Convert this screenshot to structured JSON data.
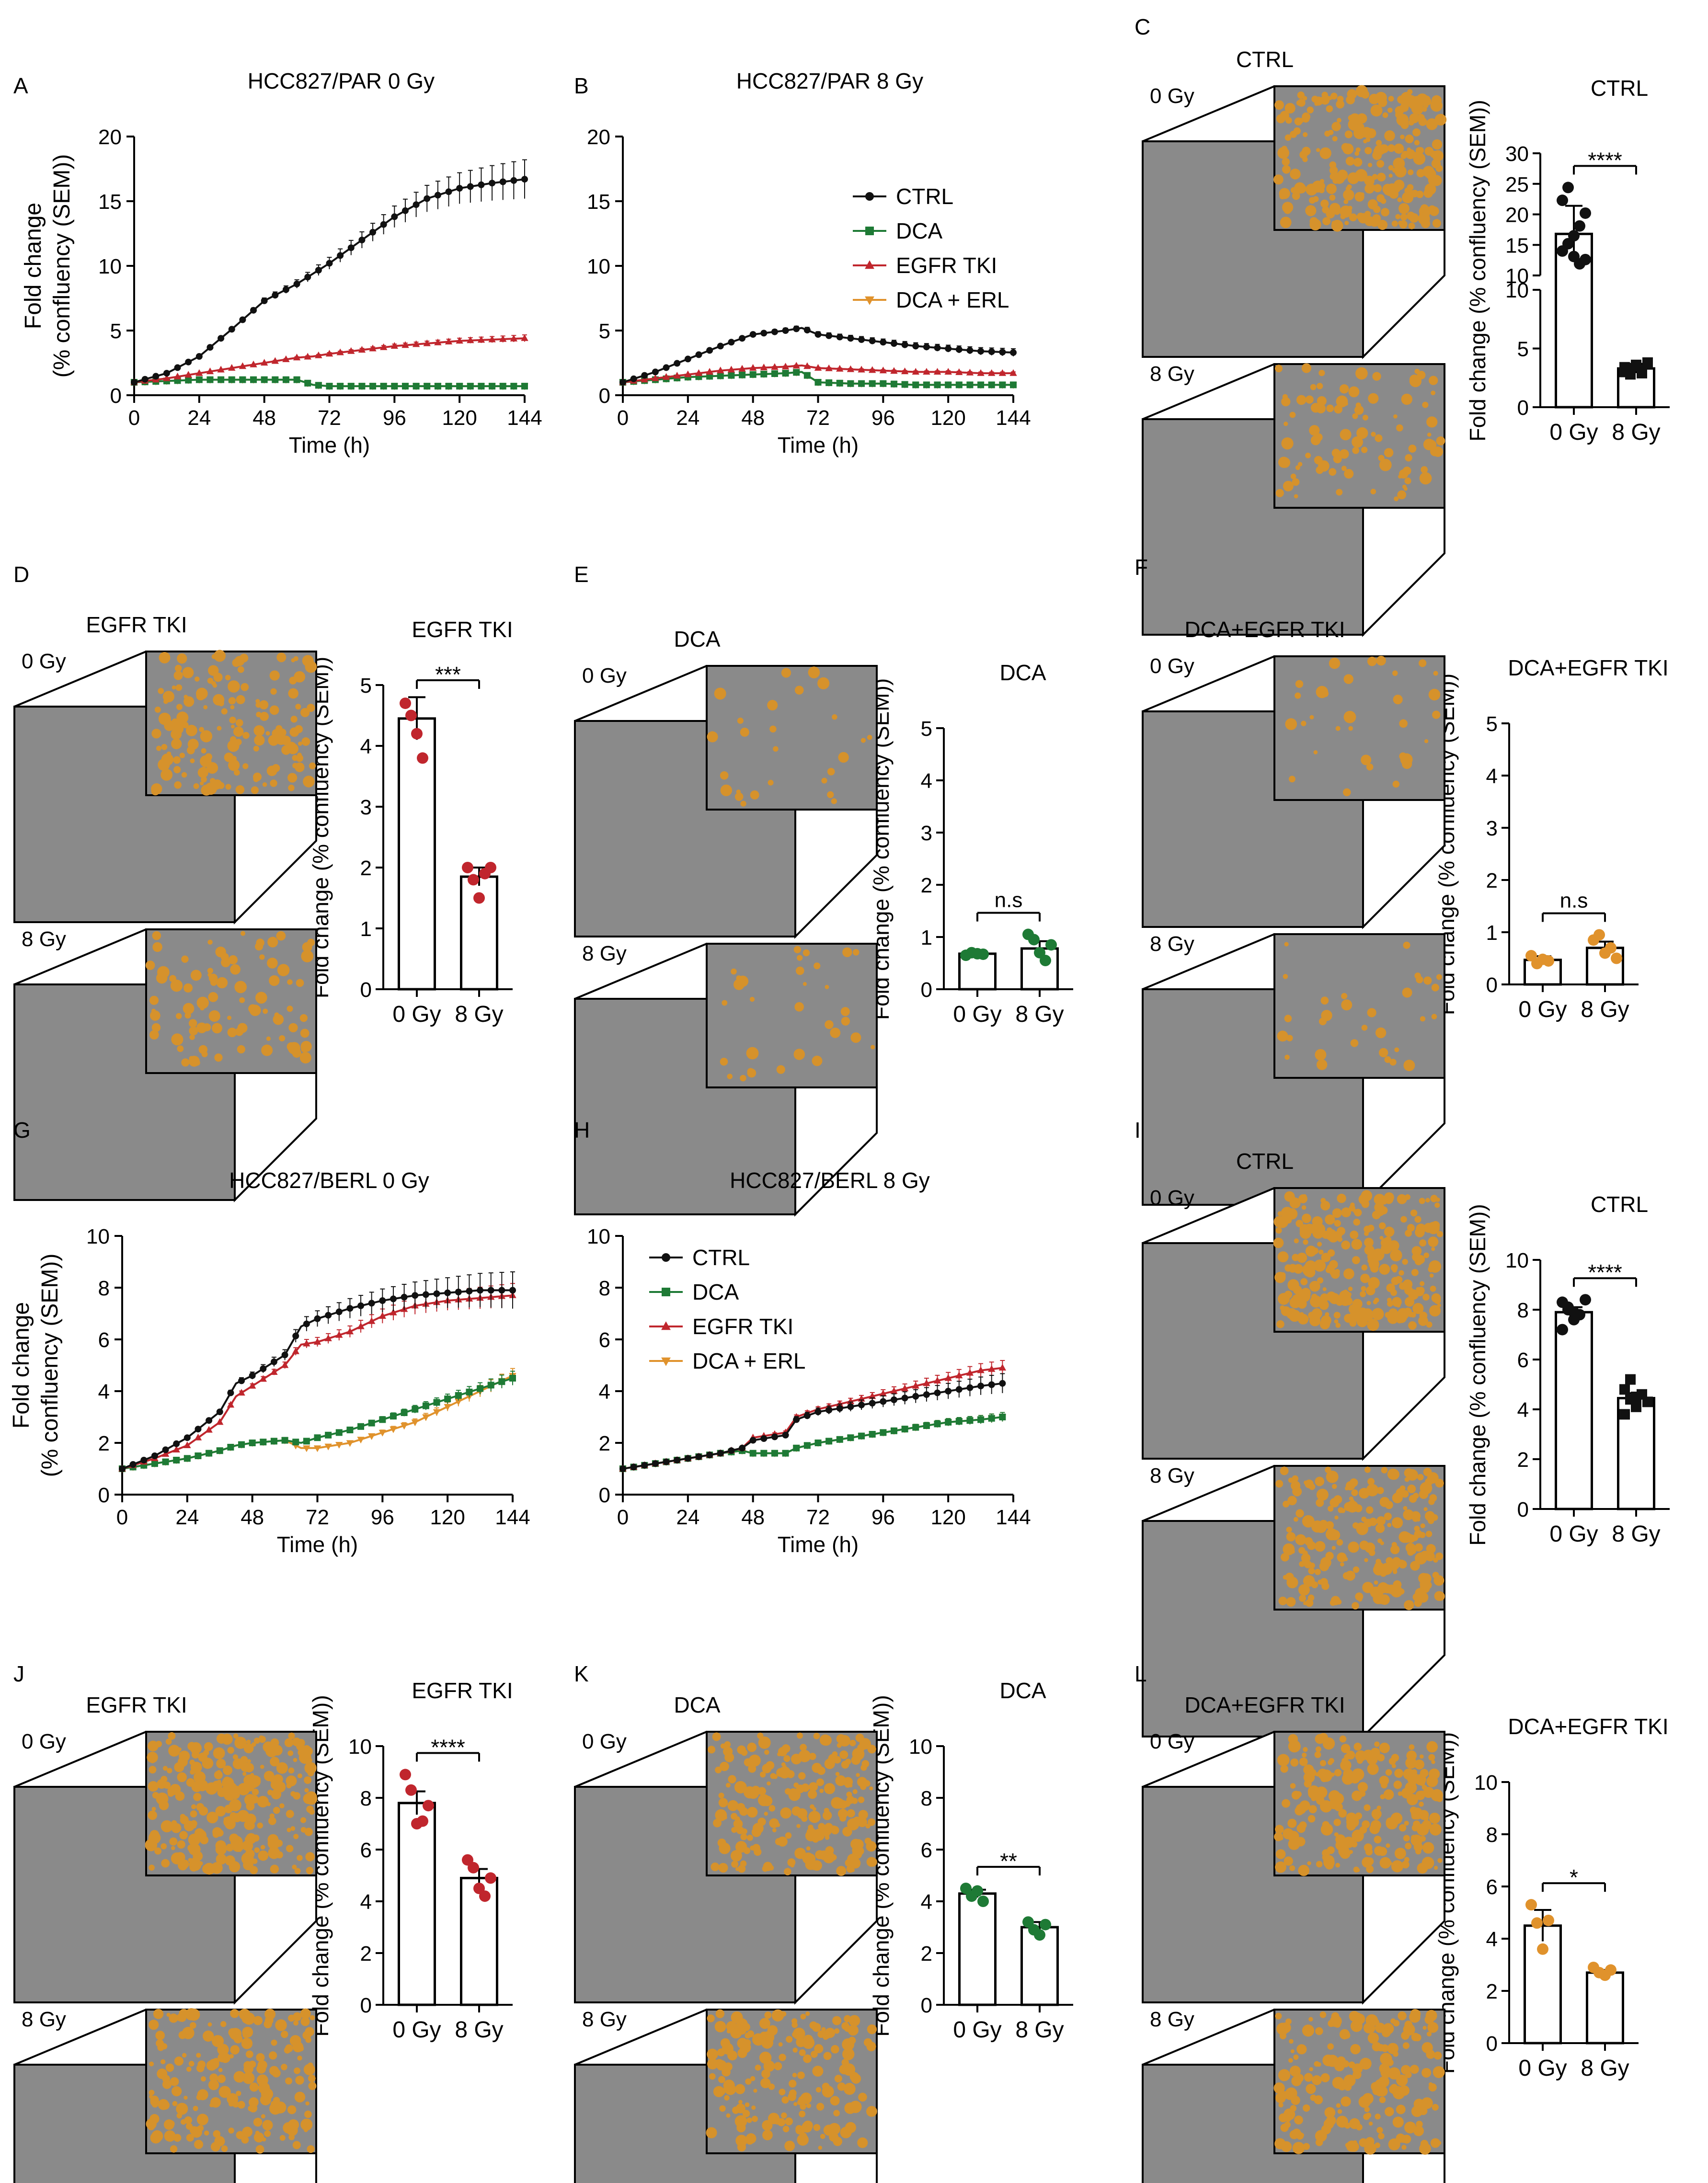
{
  "figure": {
    "colors": {
      "ctrl": "#111111",
      "dca": "#1e7a35",
      "tki": "#c0262d",
      "combo": "#e0922c",
      "image_gray": "#8a8a8a",
      "overlay": "#d6922b"
    },
    "image_labels": {
      "dose0": "0 Gy",
      "dose8": "8 Gy"
    }
  },
  "chart_data": [
    {
      "panel": "A",
      "type": "line",
      "title": "HCC827/PAR 0 Gy",
      "xlabel": "Time (h)",
      "ylabel": [
        "Fold change",
        "(% confluency (SEM))"
      ],
      "xlim": [
        0,
        144
      ],
      "ylim": [
        0,
        20
      ],
      "xticks": [
        "0",
        "24",
        "48",
        "72",
        "96",
        "120",
        "144"
      ],
      "yticks": [
        "0",
        "5",
        "10",
        "15",
        "20"
      ],
      "x": [
        0,
        12,
        24,
        36,
        48,
        60,
        66,
        72,
        84,
        96,
        108,
        120,
        132,
        144
      ],
      "series": [
        {
          "name": "CTRL",
          "key": "ctrl",
          "values": [
            1.0,
            1.7,
            3.0,
            5.1,
            7.3,
            8.6,
            9.4,
            10.2,
            12.0,
            13.8,
            15.2,
            16.0,
            16.4,
            16.7
          ]
        },
        {
          "name": "DCA",
          "key": "dca",
          "values": [
            1.0,
            1.1,
            1.2,
            1.2,
            1.2,
            1.2,
            0.8,
            0.7,
            0.7,
            0.7,
            0.7,
            0.7,
            0.7,
            0.7
          ]
        },
        {
          "name": "EGFR TKI",
          "key": "tki",
          "values": [
            1.0,
            1.3,
            1.7,
            2.1,
            2.5,
            2.9,
            3.0,
            3.2,
            3.5,
            3.8,
            4.0,
            4.2,
            4.3,
            4.4
          ]
        },
        {
          "name": "DCA + ERL",
          "key": "combo",
          "values": [
            1.0,
            1.1,
            1.2,
            1.2,
            1.2,
            1.2,
            0.8,
            0.7,
            0.7,
            0.7,
            0.7,
            0.7,
            0.7,
            0.7
          ]
        }
      ]
    },
    {
      "panel": "B",
      "type": "line",
      "title": "HCC827/PAR 8 Gy",
      "xlabel": "Time (h)",
      "ylabel": [],
      "xlim": [
        0,
        144
      ],
      "ylim": [
        0,
        20
      ],
      "xticks": [
        "0",
        "24",
        "48",
        "72",
        "96",
        "120",
        "144"
      ],
      "yticks": [
        "0",
        "5",
        "10",
        "15",
        "20"
      ],
      "legend": [
        "CTRL",
        "DCA",
        "EGFR TKI",
        "DCA + ERL"
      ],
      "x": [
        0,
        12,
        24,
        36,
        48,
        60,
        66,
        72,
        84,
        96,
        108,
        120,
        132,
        144
      ],
      "series": [
        {
          "name": "CTRL",
          "key": "ctrl",
          "values": [
            1.0,
            1.8,
            2.8,
            3.8,
            4.7,
            5.0,
            5.2,
            4.7,
            4.4,
            4.1,
            3.8,
            3.6,
            3.4,
            3.3
          ]
        },
        {
          "name": "DCA",
          "key": "dca",
          "values": [
            1.0,
            1.2,
            1.4,
            1.5,
            1.6,
            1.7,
            1.8,
            1.0,
            0.9,
            0.9,
            0.8,
            0.8,
            0.8,
            0.8
          ]
        },
        {
          "name": "EGFR TKI",
          "key": "tki",
          "values": [
            1.0,
            1.3,
            1.6,
            1.9,
            2.1,
            2.2,
            2.3,
            2.1,
            2.0,
            1.9,
            1.8,
            1.8,
            1.7,
            1.7
          ]
        },
        {
          "name": "DCA + ERL",
          "key": "combo",
          "values": [
            1.0,
            1.2,
            1.4,
            1.5,
            1.6,
            1.7,
            1.8,
            1.0,
            0.9,
            0.9,
            0.8,
            0.8,
            0.8,
            0.8
          ]
        }
      ]
    },
    {
      "panel": "C",
      "type": "bar",
      "broken_axis": true,
      "image_title": "CTRL",
      "title": "CTRL",
      "ylabel": "Fold change (% confluency (SEM))",
      "categories": [
        "0 Gy",
        "8 Gy"
      ],
      "values": [
        16.8,
        3.3
      ],
      "errors": [
        4.6,
        0.4
      ],
      "yticks_low": [
        "0",
        "5",
        "10"
      ],
      "yticks_high": [
        "10",
        "15",
        "20",
        "25",
        "30"
      ],
      "ylim_low": [
        0,
        10
      ],
      "ylim_high": [
        10,
        30
      ],
      "points": [
        [
          14.0,
          15.2,
          16.5,
          18.1,
          20.2,
          22.3,
          24.4,
          13.1,
          11.9,
          12.6
        ],
        [
          3.0,
          3.3,
          3.6,
          2.9,
          3.8,
          3.4,
          2.8,
          3.5,
          3.2,
          3.7
        ]
      ],
      "marker": "circle_square",
      "point_color": "ctrl",
      "significance": "****"
    },
    {
      "panel": "D",
      "type": "bar",
      "image_title": "EGFR TKI",
      "title": "EGFR TKI",
      "ylabel": "Fold change (% confluency (SEM))",
      "categories": [
        "0 Gy",
        "8 Gy"
      ],
      "values": [
        4.45,
        1.85
      ],
      "errors": [
        0.35,
        0.15
      ],
      "ylim": [
        0,
        5
      ],
      "yticks": [
        "0",
        "1",
        "2",
        "3",
        "4",
        "5"
      ],
      "points": [
        [
          4.7,
          4.5,
          4.2,
          3.8
        ],
        [
          2.0,
          1.8,
          1.5,
          1.9,
          2.0
        ]
      ],
      "point_color": "tki",
      "significance": "***"
    },
    {
      "panel": "E",
      "type": "bar",
      "image_title": "DCA",
      "title": "DCA",
      "ylabel": "Fold change (% confluency (SEM))",
      "categories": [
        "0 Gy",
        "8 Gy"
      ],
      "values": [
        0.68,
        0.78
      ],
      "errors": [
        0.03,
        0.14
      ],
      "ylim": [
        0,
        5
      ],
      "yticks": [
        "0",
        "1",
        "2",
        "3",
        "4",
        "5"
      ],
      "points": [
        [
          0.65,
          0.7,
          0.68,
          0.67
        ],
        [
          1.05,
          0.95,
          0.7,
          0.55,
          0.85
        ]
      ],
      "point_color": "dca",
      "significance": "n.s"
    },
    {
      "panel": "F",
      "type": "bar",
      "image_title": "DCA+EGFR TKI",
      "title": "DCA+EGFR TKI",
      "ylabel": "Fold change (% confluency (SEM))",
      "categories": [
        "0 Gy",
        "8 Gy"
      ],
      "values": [
        0.47,
        0.7
      ],
      "errors": [
        0.07,
        0.12
      ],
      "ylim": [
        0,
        5
      ],
      "yticks": [
        "0",
        "1",
        "2",
        "3",
        "4",
        "5"
      ],
      "points": [
        [
          0.55,
          0.4,
          0.48,
          0.45
        ],
        [
          0.85,
          0.95,
          0.6,
          0.7,
          0.5
        ]
      ],
      "point_color": "combo",
      "significance": "n.s"
    },
    {
      "panel": "G",
      "type": "line",
      "title": "HCC827/BERL 0 Gy",
      "xlabel": "Time (h)",
      "ylabel": [
        "Fold change",
        "(% confluency (SEM))"
      ],
      "xlim": [
        0,
        144
      ],
      "ylim": [
        0,
        10
      ],
      "xticks": [
        "0",
        "24",
        "48",
        "72",
        "96",
        "120",
        "144"
      ],
      "yticks": [
        "0",
        "2",
        "4",
        "6",
        "8",
        "10"
      ],
      "x": [
        0,
        12,
        24,
        36,
        42,
        48,
        60,
        66,
        72,
        84,
        96,
        108,
        120,
        132,
        144
      ],
      "series": [
        {
          "name": "CTRL",
          "key": "ctrl",
          "values": [
            1.0,
            1.5,
            2.2,
            3.2,
            4.3,
            4.6,
            5.4,
            6.5,
            6.8,
            7.2,
            7.5,
            7.7,
            7.8,
            7.9,
            7.9
          ]
        },
        {
          "name": "DCA",
          "key": "dca",
          "values": [
            1.0,
            1.2,
            1.4,
            1.7,
            1.9,
            2.0,
            2.1,
            2.0,
            2.2,
            2.5,
            2.9,
            3.3,
            3.7,
            4.1,
            4.5
          ]
        },
        {
          "name": "EGFR TKI",
          "key": "tki",
          "values": [
            1.0,
            1.4,
            1.9,
            2.8,
            3.8,
            4.2,
            5.0,
            5.8,
            5.9,
            6.3,
            6.9,
            7.3,
            7.5,
            7.6,
            7.7
          ]
        },
        {
          "name": "DCA + ERL",
          "key": "combo",
          "values": [
            1.0,
            1.2,
            1.4,
            1.7,
            1.9,
            2.0,
            2.1,
            1.8,
            1.8,
            2.0,
            2.4,
            2.8,
            3.4,
            4.0,
            4.6
          ]
        }
      ]
    },
    {
      "panel": "H",
      "type": "line",
      "title": "HCC827/BERL 8 Gy",
      "xlabel": "Time (h)",
      "ylabel": [],
      "xlim": [
        0,
        144
      ],
      "ylim": [
        0,
        10
      ],
      "xticks": [
        "0",
        "24",
        "48",
        "72",
        "96",
        "120",
        "144"
      ],
      "yticks": [
        "0",
        "2",
        "4",
        "6",
        "8",
        "10"
      ],
      "legend": [
        "CTRL",
        "DCA",
        "EGFR TKI",
        "DCA + ERL"
      ],
      "x": [
        0,
        12,
        24,
        36,
        44,
        48,
        60,
        64,
        72,
        84,
        96,
        108,
        120,
        132,
        140
      ],
      "series": [
        {
          "name": "CTRL",
          "key": "ctrl",
          "values": [
            1.0,
            1.2,
            1.4,
            1.6,
            1.8,
            2.1,
            2.3,
            2.9,
            3.2,
            3.4,
            3.6,
            3.8,
            4.0,
            4.2,
            4.3
          ]
        },
        {
          "name": "DCA",
          "key": "dca",
          "values": [
            1.0,
            1.2,
            1.4,
            1.6,
            1.7,
            1.6,
            1.6,
            1.8,
            2.0,
            2.2,
            2.4,
            2.6,
            2.8,
            2.9,
            3.0
          ]
        },
        {
          "name": "EGFR TKI",
          "key": "tki",
          "values": [
            1.0,
            1.2,
            1.4,
            1.6,
            1.8,
            2.2,
            2.4,
            3.0,
            3.3,
            3.6,
            3.9,
            4.2,
            4.5,
            4.8,
            4.9
          ]
        },
        {
          "name": "DCA + ERL",
          "key": "combo",
          "values": [
            1.0,
            1.2,
            1.4,
            1.6,
            1.7,
            1.6,
            1.6,
            1.8,
            2.0,
            2.2,
            2.4,
            2.6,
            2.8,
            2.9,
            3.0
          ]
        }
      ]
    },
    {
      "panel": "I",
      "type": "bar",
      "image_title": "CTRL",
      "title": "CTRL",
      "ylabel": "Fold change (% confluency (SEM))",
      "categories": [
        "0 Gy",
        "8 Gy"
      ],
      "values": [
        7.9,
        4.45
      ],
      "errors": [
        0.2,
        0.2
      ],
      "ylim": [
        0,
        10
      ],
      "yticks": [
        "0",
        "2",
        "4",
        "6",
        "8",
        "10"
      ],
      "points": [
        [
          8.3,
          8.0,
          7.6,
          7.8,
          8.4,
          7.2,
          8.1,
          7.9
        ],
        [
          4.8,
          4.4,
          4.1,
          4.6,
          4.3,
          3.8,
          5.2,
          4.5
        ]
      ],
      "marker": "circle_square",
      "point_color": "ctrl",
      "significance": "****"
    },
    {
      "panel": "J",
      "type": "bar",
      "image_title": "EGFR TKI",
      "title": "EGFR TKI",
      "ylabel": "Fold change (% confluency (SEM))",
      "categories": [
        "0 Gy",
        "8 Gy"
      ],
      "values": [
        7.8,
        4.9
      ],
      "errors": [
        0.45,
        0.35
      ],
      "ylim": [
        0,
        10
      ],
      "yticks": [
        "0",
        "2",
        "4",
        "6",
        "8",
        "10"
      ],
      "points": [
        [
          8.9,
          8.3,
          7.0,
          7.1,
          7.7
        ],
        [
          5.6,
          5.3,
          4.5,
          4.2,
          4.9
        ]
      ],
      "point_color": "tki",
      "significance": "****"
    },
    {
      "panel": "K",
      "type": "bar",
      "image_title": "DCA",
      "title": "DCA",
      "ylabel": "Fold change (% confluency (SEM))",
      "categories": [
        "0 Gy",
        "8 Gy"
      ],
      "values": [
        4.3,
        3.0
      ],
      "errors": [
        0.15,
        0.2
      ],
      "ylim": [
        0,
        10
      ],
      "yticks": [
        "0",
        "2",
        "4",
        "6",
        "8",
        "10"
      ],
      "points": [
        [
          4.5,
          4.2,
          4.4,
          4.0
        ],
        [
          3.2,
          2.9,
          2.7,
          3.1
        ]
      ],
      "point_color": "dca",
      "significance": "**"
    },
    {
      "panel": "L",
      "type": "bar",
      "image_title": "DCA+EGFR TKI",
      "title": "DCA+EGFR TKI",
      "ylabel": "Fold change (% confluency (SEM))",
      "categories": [
        "0 Gy",
        "8 Gy"
      ],
      "values": [
        4.5,
        2.7
      ],
      "errors": [
        0.6,
        0.1
      ],
      "ylim": [
        0,
        10
      ],
      "yticks": [
        "0",
        "2",
        "4",
        "6",
        "8",
        "10"
      ],
      "points": [
        [
          5.3,
          4.6,
          3.6,
          4.7
        ],
        [
          2.9,
          2.7,
          2.6,
          2.8
        ]
      ],
      "point_color": "combo",
      "significance": "*"
    }
  ]
}
